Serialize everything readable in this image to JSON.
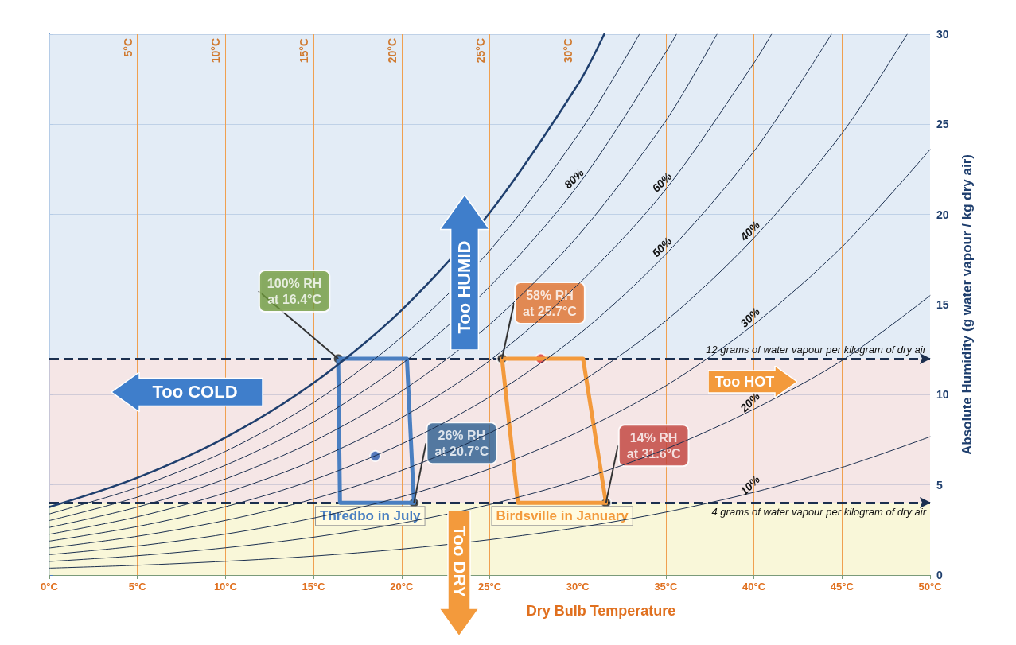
{
  "chart_data": {
    "type": "line",
    "xlabel": "Dry Bulb Temperature",
    "ylabel": "Absolute Humidity (g water vapour / kg dry air)",
    "xlim": [
      0,
      50
    ],
    "ylim": [
      0,
      30
    ],
    "xticks": [
      {
        "value": 0,
        "label": "0°C"
      },
      {
        "value": 5,
        "label": "5°C"
      },
      {
        "value": 10,
        "label": "10°C"
      },
      {
        "value": 15,
        "label": "15°C"
      },
      {
        "value": 20,
        "label": "20°C"
      },
      {
        "value": 25,
        "label": "25°C"
      },
      {
        "value": 30,
        "label": "30°C"
      },
      {
        "value": 35,
        "label": "35°C"
      },
      {
        "value": 40,
        "label": "40°C"
      },
      {
        "value": 45,
        "label": "45°C"
      },
      {
        "value": 50,
        "label": "50°C"
      }
    ],
    "yticks": [
      0,
      5,
      10,
      15,
      20,
      25,
      30
    ],
    "grid": "y",
    "marker": "none",
    "legend": false,
    "series": [
      {
        "color": "#1f3f6e",
        "x": [
          0,
          5,
          10,
          15,
          20,
          25,
          30,
          31.5
        ],
        "values": [
          3.77,
          5.4,
          7.63,
          10.65,
          14.7,
          20.1,
          27.2,
          30
        ]
      },
      {
        "color": "#1b2f4f",
        "x": [
          0,
          5,
          10,
          15,
          20,
          25,
          30,
          33.5
        ],
        "values": [
          3.39,
          4.86,
          6.86,
          9.57,
          13.2,
          18.0,
          24.4,
          30
        ]
      },
      {
        "name": "80%",
        "color": "#1b2f4f",
        "x": [
          0,
          5,
          10,
          15,
          20,
          25,
          30,
          35,
          35.6
        ],
        "values": [
          3.02,
          4.32,
          6.09,
          8.49,
          11.7,
          16.0,
          21.6,
          29.0,
          30
        ]
      },
      {
        "color": "#1b2f4f",
        "x": [
          0,
          5,
          10,
          15,
          20,
          25,
          30,
          35,
          37.9
        ],
        "values": [
          2.64,
          3.77,
          5.33,
          7.42,
          10.2,
          13.9,
          18.8,
          25.2,
          30
        ]
      },
      {
        "name": "60%",
        "color": "#1b2f4f",
        "x": [
          0,
          5,
          10,
          15,
          20,
          25,
          30,
          35,
          40,
          41
        ],
        "values": [
          2.26,
          3.23,
          4.56,
          6.35,
          8.73,
          11.9,
          16.1,
          21.4,
          28.4,
          30
        ]
      },
      {
        "name": "50%",
        "color": "#1b2f4f",
        "x": [
          0,
          5,
          10,
          15,
          20,
          25,
          30,
          35,
          40,
          44.4
        ],
        "values": [
          1.88,
          2.69,
          3.79,
          5.28,
          7.27,
          9.88,
          13.3,
          17.8,
          23.5,
          30
        ]
      },
      {
        "name": "40%",
        "color": "#1b2f4f",
        "x": [
          0,
          5,
          10,
          15,
          20,
          25,
          30,
          35,
          40,
          45,
          48.7
        ],
        "values": [
          1.5,
          2.15,
          3.03,
          4.22,
          5.8,
          7.88,
          10.6,
          14.1,
          18.7,
          24.5,
          30
        ]
      },
      {
        "name": "30%",
        "color": "#1b2f4f",
        "x": [
          0,
          5,
          10,
          15,
          20,
          25,
          30,
          35,
          40,
          45,
          50
        ],
        "values": [
          1.13,
          1.61,
          2.27,
          3.16,
          4.34,
          5.89,
          7.92,
          10.5,
          13.9,
          18.2,
          23.6
        ]
      },
      {
        "name": "20%",
        "color": "#1b2f4f",
        "x": [
          0,
          5,
          10,
          15,
          20,
          25,
          30,
          35,
          40,
          45,
          50
        ],
        "values": [
          0.75,
          1.07,
          1.51,
          2.1,
          2.88,
          3.91,
          5.26,
          6.99,
          9.2,
          11.9,
          15.5
        ]
      },
      {
        "name": "10%",
        "color": "#1b2f4f",
        "x": [
          0,
          5,
          10,
          15,
          20,
          25,
          30,
          35,
          40,
          45,
          50
        ],
        "values": [
          0.38,
          0.54,
          0.76,
          1.05,
          1.44,
          1.96,
          2.63,
          3.49,
          4.59,
          5.97,
          7.67
        ]
      },
      {
        "name": "Thredbo in July",
        "color": "#4a7fc1",
        "x": [
          16.4,
          20.3,
          20.7
        ],
        "values": [
          12,
          12,
          4
        ]
      },
      {
        "color": "#4a7fc1",
        "x": [
          16.4,
          16.5,
          20.7
        ],
        "values": [
          12,
          4,
          4
        ]
      },
      {
        "name": "Birdsville in January",
        "color": "#f39a3c",
        "x": [
          25.7,
          30.3,
          31.6
        ],
        "values": [
          12,
          12,
          4
        ]
      },
      {
        "color": "#f39a3c",
        "x": [
          25.7,
          26.6,
          31.6
        ],
        "values": [
          12,
          4,
          4
        ]
      },
      {
        "type": "scatter",
        "marker": "circle",
        "color": "#222222",
        "x": [
          16.4,
          20.7,
          25.7,
          31.6
        ],
        "values": [
          12,
          4,
          12,
          4
        ]
      },
      {
        "type": "scatter",
        "marker": "circle",
        "color": "#2a5db0",
        "x": [
          18.5
        ],
        "values": [
          6.6
        ]
      },
      {
        "type": "scatter",
        "marker": "circle",
        "color": "#e03030",
        "x": [
          27.9
        ],
        "values": [
          12
        ]
      }
    ],
    "ref_lines": [
      {
        "axis": "x",
        "value": 5,
        "label": "5°C",
        "color": "#f0a050"
      },
      {
        "axis": "x",
        "value": 10,
        "label": "10°C",
        "color": "#f0a050"
      },
      {
        "axis": "x",
        "value": 15,
        "label": "15°C",
        "color": "#f0a050"
      },
      {
        "axis": "x",
        "value": 20,
        "label": "20°C",
        "color": "#f0a050"
      },
      {
        "axis": "x",
        "value": 25,
        "label": "25°C",
        "color": "#f0a050"
      },
      {
        "axis": "x",
        "value": 30,
        "label": "30°C",
        "color": "#f0a050"
      },
      {
        "axis": "x",
        "value": 35,
        "color": "#f0a050"
      },
      {
        "axis": "x",
        "value": 40,
        "color": "#f0a050"
      },
      {
        "axis": "x",
        "value": 45,
        "color": "#f0a050"
      },
      {
        "axis": "y",
        "value": 12,
        "label": "12 grams of water vapour per kilogram of dry air",
        "color": "#1b2f4f",
        "line_style": "dashed"
      },
      {
        "axis": "y",
        "value": 4,
        "label": "4 grams of water vapour per kilogram of dry air",
        "color": "#1b2f4f",
        "line_style": "dashed"
      }
    ],
    "bands": [
      {
        "axis": "y",
        "from": 0,
        "to": 4,
        "color": "#f7f4cc"
      },
      {
        "axis": "y",
        "from": 4,
        "to": 12,
        "color": "#f1dddd"
      },
      {
        "axis": "y",
        "from": 12,
        "to": 30,
        "color": "#d9e5f3"
      }
    ],
    "annotations": [
      {
        "text": "100% RH\nat 16.4°C",
        "x": 16.4,
        "y": 12
      },
      {
        "text": "26% RH\nat 20.7°C",
        "x": 20.7,
        "y": 4
      },
      {
        "text": "58% RH\nat 25.7°C",
        "x": 25.7,
        "y": 12
      },
      {
        "text": "14% RH\nat 31.6°C",
        "x": 31.6,
        "y": 4
      },
      "Too HUMID",
      "Too COLD",
      "Too HOT",
      "Too DRY"
    ]
  }
}
